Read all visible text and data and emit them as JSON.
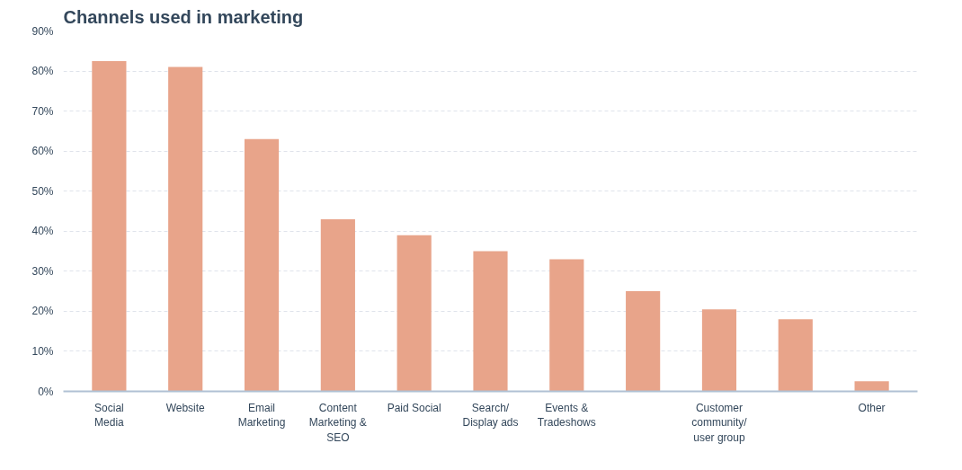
{
  "chart_data": {
    "type": "bar",
    "title": "Channels used in marketing",
    "categories": [
      "Social Media",
      "Website",
      "Email Marketing",
      "Content Marketing & SEO",
      "Paid Social",
      "Search/ Display ads",
      "Events & Tradeshows",
      null,
      "Customer community/ user group",
      null,
      "Other"
    ],
    "values": [
      82.5,
      81,
      63,
      43,
      39,
      35,
      33,
      25,
      20.5,
      18,
      2.5
    ],
    "color": "#e8a48a",
    "ylim": [
      0,
      90
    ],
    "yticks": [
      {
        "value": 0,
        "label": "0%"
      },
      {
        "value": 10,
        "label": "10%"
      },
      {
        "value": 20,
        "label": "20%"
      },
      {
        "value": 30,
        "label": "30%"
      },
      {
        "value": 40,
        "label": "40%"
      },
      {
        "value": 50,
        "label": "50%"
      },
      {
        "value": 60,
        "label": "60%"
      },
      {
        "value": 70,
        "label": "70%"
      },
      {
        "value": 80,
        "label": "80%"
      },
      {
        "value": 90,
        "label": "90%"
      }
    ],
    "grid": "y"
  }
}
